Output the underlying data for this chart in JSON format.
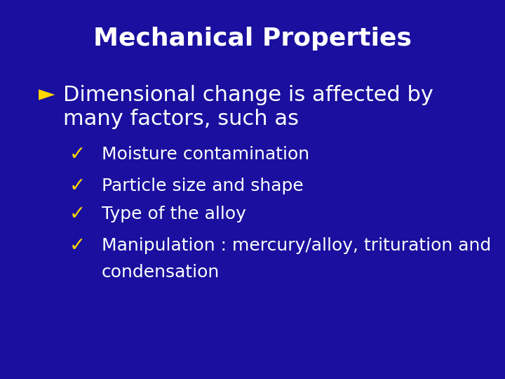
{
  "background_color": "#1a0f9e",
  "title": "Mechanical Properties",
  "title_color": "#ffffff",
  "title_fontsize": 26,
  "title_fontweight": "bold",
  "bullet_arrow_color": "#FFD700",
  "bullet_check_color": "#FFD700",
  "bullet_text_color": "#ffffff",
  "main_bullet_line1": "Dimensional change is affected by",
  "main_bullet_line2": "many factors, such as",
  "main_bullet_fontsize": 22,
  "sub_bullets": [
    "Moisture contamination",
    "Particle size and shape",
    "Type of the alloy",
    "Manipulation : mercury/alloy, trituration and\ncondensation"
  ],
  "sub_bullet_fontsize": 18
}
